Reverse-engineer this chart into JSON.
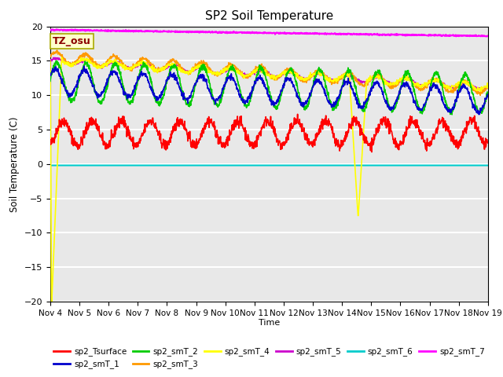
{
  "title": "SP2 Soil Temperature",
  "xlabel": "Time",
  "ylabel": "Soil Temperature (C)",
  "ylim": [
    -20,
    20
  ],
  "background_color": "#e8e8e8",
  "grid_color": "white",
  "tz_label": "TZ_osu",
  "x_tick_labels": [
    "Nov 4",
    "Nov 5",
    "Nov 6",
    "Nov 7",
    "Nov 8",
    "Nov 9",
    "Nov 10",
    "Nov 11",
    "Nov 12",
    "Nov 13",
    "Nov 14",
    "Nov 15",
    "Nov 16",
    "Nov 17",
    "Nov 18",
    "Nov 19"
  ],
  "line_colors": {
    "sp2_Tsurface": "#ff0000",
    "sp2_smT_1": "#0000cc",
    "sp2_smT_2": "#00cc00",
    "sp2_smT_3": "#ff9900",
    "sp2_smT_4": "#ffff00",
    "sp2_smT_5": "#cc00cc",
    "sp2_smT_6": "#00cccc",
    "sp2_smT_7": "#ff00ff"
  },
  "n_points": 1500,
  "yticks": [
    -20,
    -15,
    -10,
    -5,
    0,
    5,
    10,
    15,
    20
  ]
}
